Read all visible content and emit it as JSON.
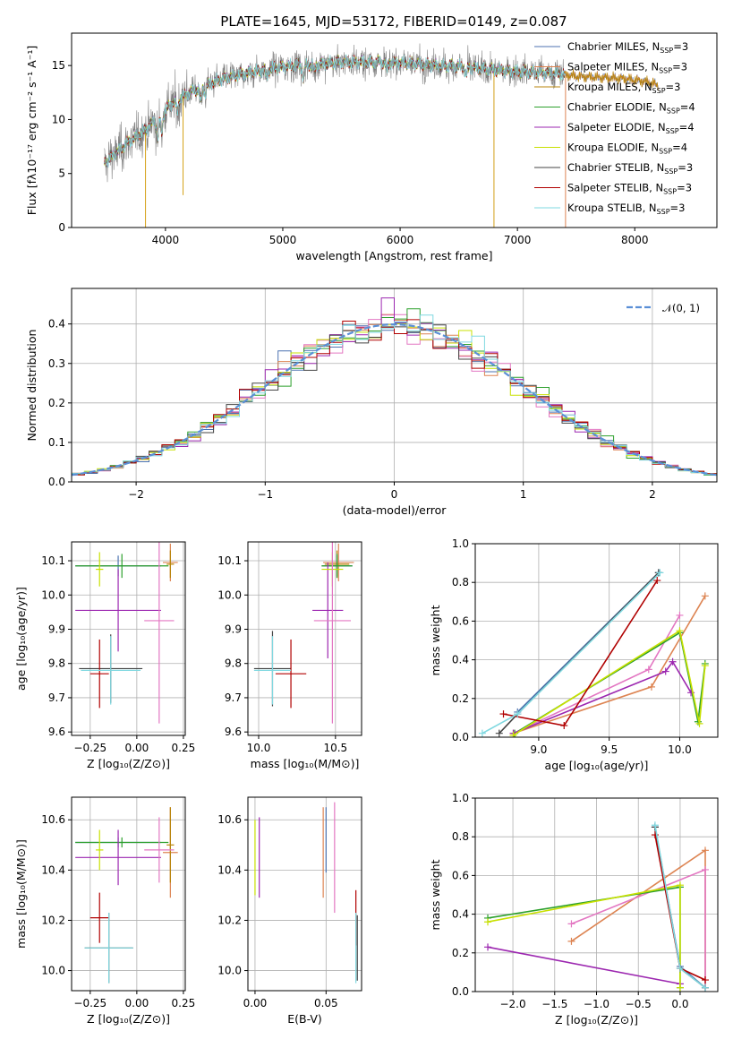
{
  "figure_title": "PLATE=1645, MJD=53172, FIBERID=0149, z=0.087",
  "colors": {
    "chabrier_miles": "#4c72b0",
    "salpeter_miles": "#dd8452",
    "kroupa_miles": "#b8860b",
    "chabrier_elodie": "#2ca02c",
    "salpeter_elodie": "#9c27b0",
    "kroupa_elodie": "#c8e000",
    "chabrier_stelib": "#444444",
    "salpeter_stelib": "#b00000",
    "kroupa_stelib": "#7fd8e0",
    "gauss": "#5a8fd6"
  },
  "chart_data": [
    {
      "id": "spectrum",
      "type": "line",
      "xlabel": "wavelength [Angstrom, rest frame]",
      "ylabel": "Flux [fλ10⁻¹⁷ erg cm⁻² s⁻¹ A⁻¹]",
      "xlim": [
        3200,
        8700
      ],
      "ylim": [
        0,
        18
      ],
      "xticks": [
        "4000",
        "5000",
        "6000",
        "7000",
        "8000"
      ],
      "yticks": [
        "0",
        "5",
        "10",
        "15"
      ],
      "grid": false,
      "legend_position": "top-right",
      "legend": [
        {
          "label": "Chabrier MILES, N_SSP=3",
          "color_key": "chabrier_miles"
        },
        {
          "label": "Salpeter MILES, N_SSP=3",
          "color_key": "salpeter_miles"
        },
        {
          "label": "Kroupa MILES, N_SSP=3",
          "color_key": "kroupa_miles"
        },
        {
          "label": "Chabrier ELODIE, N_SSP=4",
          "color_key": "chabrier_elodie"
        },
        {
          "label": "Salpeter ELODIE, N_SSP=4",
          "color_key": "salpeter_elodie"
        },
        {
          "label": "Kroupa ELODIE, N_SSP=4",
          "color_key": "kroupa_elodie"
        },
        {
          "label": "Chabrier STELIB, N_SSP=3",
          "color_key": "chabrier_stelib"
        },
        {
          "label": "Salpeter STELIB, N_SSP=3",
          "color_key": "salpeter_stelib"
        },
        {
          "label": "Kroupa STELIB, N_SSP=3",
          "color_key": "kroupa_stelib"
        }
      ],
      "continuum": {
        "x": [
          3480,
          3550,
          3650,
          3750,
          3850,
          3950,
          4050,
          4150,
          4300,
          4500,
          4700,
          4900,
          5100,
          5300,
          5500,
          5700,
          5900,
          6100,
          6300,
          6500,
          6700,
          6900,
          7100,
          7300,
          7500,
          7700,
          7900,
          8100,
          8200
        ],
        "y": [
          6.0,
          6.6,
          7.6,
          8.4,
          9.2,
          10.4,
          11.4,
          12.2,
          13.0,
          13.8,
          14.3,
          14.7,
          15.0,
          15.1,
          15.3,
          15.3,
          15.3,
          15.2,
          15.0,
          14.9,
          14.7,
          14.5,
          14.4,
          14.3,
          14.0,
          13.9,
          13.8,
          13.5,
          13.2
        ]
      },
      "data_range": [
        3480,
        7400
      ],
      "model_range": [
        3480,
        8200
      ]
    },
    {
      "id": "residuals",
      "type": "line",
      "xlabel": "(data-model)/error",
      "ylabel": "Normed distribution",
      "xlim": [
        -2.5,
        2.5
      ],
      "ylim": [
        0,
        0.49
      ],
      "xticks": [
        -2,
        -1,
        0,
        1,
        2
      ],
      "xticklabels": [
        "−2",
        "−1",
        "0",
        "1",
        "2"
      ],
      "yticks": [
        0.0,
        0.1,
        0.2,
        0.3,
        0.4
      ],
      "yticklabels": [
        "0.0",
        "0.1",
        "0.2",
        "0.3",
        "0.4"
      ],
      "grid": true,
      "legend_position": "top-right",
      "legend": [
        {
          "label": "𝒩(0, 1)",
          "color_key": "gauss"
        }
      ],
      "bin_width": 0.1,
      "bin_start": -2.5
    },
    {
      "id": "age-vs-Z",
      "type": "scatter",
      "xlabel": "Z [log₁₀(Z/Z⊙)]",
      "ylabel": "age  [log₁₀(age/yr)]",
      "xlim": [
        -0.35,
        0.26
      ],
      "ylim": [
        9.59,
        10.155
      ],
      "xticks": [
        -0.25,
        0.0,
        0.25
      ],
      "xticklabels": [
        "−0.25",
        "0.00",
        "0.25"
      ],
      "yticks": [
        9.6,
        9.7,
        9.8,
        9.9,
        10.0,
        10.1
      ],
      "yticklabels": [
        "9.6",
        "9.7",
        "9.8",
        "9.9",
        "10.0",
        "10.1"
      ],
      "grid": true,
      "points": [
        {
          "s": "chabrier_miles",
          "x": -0.1,
          "xerr": 0.23,
          "y": 10.085,
          "yerr": 0.03
        },
        {
          "s": "salpeter_miles",
          "x": 0.18,
          "xerr": 0.04,
          "y": 10.095,
          "yerr": 0.055
        },
        {
          "s": "kroupa_miles",
          "x": 0.18,
          "xerr": 0.02,
          "y": 10.09,
          "yerr": 0.04
        },
        {
          "s": "chabrier_elodie",
          "x": -0.08,
          "xerr": 0.25,
          "y": 10.085,
          "yerr": 0.035
        },
        {
          "s": "salpeter_elodie",
          "x": -0.1,
          "xerr": 0.23,
          "y": 9.955,
          "yerr": 0.12
        },
        {
          "s": "kroupa_elodie",
          "x": -0.2,
          "xerr": 0.02,
          "y": 10.075,
          "yerr": 0.05
        },
        {
          "s": "chabrier_stelib",
          "x": -0.14,
          "xerr": 0.17,
          "y": 9.785,
          "yerr": 0.1
        },
        {
          "s": "salpeter_stelib",
          "x": -0.2,
          "xerr": 0.05,
          "y": 9.77,
          "yerr": 0.1
        },
        {
          "s": "kroupa_stelib",
          "x": -0.14,
          "xerr": 0.16,
          "y": 9.78,
          "yerr": 0.1
        },
        {
          "s": "salpeter_miles_pink",
          "x": 0.12,
          "xerr": 0.08,
          "y": 9.925,
          "yerr": 0.3
        }
      ]
    },
    {
      "id": "age-vs-mass",
      "type": "scatter",
      "xlabel": "mass [log₁₀(M/M⊙)]",
      "ylabel": "",
      "xlim": [
        9.93,
        10.67
      ],
      "ylim": [
        9.59,
        10.155
      ],
      "xticks": [
        10.0,
        10.5
      ],
      "xticklabels": [
        "10.0",
        "10.5"
      ],
      "yticks": [
        9.6,
        9.7,
        9.8,
        9.9,
        10.0,
        10.1
      ],
      "yticklabels": [
        "9.6",
        "9.7",
        "9.8",
        "9.9",
        "10.0",
        "10.1"
      ],
      "grid": true,
      "points": [
        {
          "s": "chabrier_miles",
          "x": 10.51,
          "xerr": 0.1,
          "y": 10.085,
          "yerr": 0.03
        },
        {
          "s": "salpeter_miles",
          "x": 10.52,
          "xerr": 0.1,
          "y": 10.095,
          "yerr": 0.055
        },
        {
          "s": "kroupa_miles",
          "x": 10.51,
          "xerr": 0.08,
          "y": 10.09,
          "yerr": 0.04
        },
        {
          "s": "chabrier_elodie",
          "x": 10.51,
          "xerr": 0.1,
          "y": 10.085,
          "yerr": 0.035
        },
        {
          "s": "salpeter_elodie",
          "x": 10.45,
          "xerr": 0.1,
          "y": 9.955,
          "yerr": 0.14
        },
        {
          "s": "kroupa_elodie",
          "x": 10.48,
          "xerr": 0.07,
          "y": 10.075,
          "yerr": 0.05
        },
        {
          "s": "chabrier_stelib",
          "x": 10.09,
          "xerr": 0.12,
          "y": 9.785,
          "yerr": 0.11
        },
        {
          "s": "salpeter_stelib",
          "x": 10.21,
          "xerr": 0.1,
          "y": 9.77,
          "yerr": 0.1
        },
        {
          "s": "kroupa_stelib",
          "x": 10.09,
          "xerr": 0.12,
          "y": 9.78,
          "yerr": 0.1
        },
        {
          "s": "salpeter_miles_pink",
          "x": 10.48,
          "xerr": 0.12,
          "y": 9.925,
          "yerr": 0.3
        }
      ]
    },
    {
      "id": "weight-vs-age",
      "type": "line",
      "xlabel": "age  [log₁₀(age/yr)]",
      "ylabel": "mass weight",
      "xlim": [
        8.55,
        10.27
      ],
      "ylim": [
        0,
        1.0
      ],
      "xticks": [
        9.0,
        9.5,
        10.0
      ],
      "xticklabels": [
        "9.0",
        "9.5",
        "10.0"
      ],
      "yticks": [
        0.0,
        0.2,
        0.4,
        0.6,
        0.8,
        1.0
      ],
      "yticklabels": [
        "0.0",
        "0.2",
        "0.4",
        "0.6",
        "0.8",
        "1.0"
      ],
      "grid": true,
      "series": [
        {
          "s": "chabrier_miles",
          "x": [
            8.85,
            9.85
          ],
          "y": [
            0.13,
            0.85
          ]
        },
        {
          "s": "salpeter_miles",
          "x": [
            8.82,
            9.8,
            10.18
          ],
          "y": [
            0.02,
            0.26,
            0.73
          ]
        },
        {
          "s": "salpeter_miles_pink",
          "x": [
            8.82,
            9.78,
            10.0
          ],
          "y": [
            0.02,
            0.35,
            0.63
          ]
        },
        {
          "s": "chabrier_elodie",
          "x": [
            8.83,
            10.0,
            10.13,
            10.18
          ],
          "y": [
            0.02,
            0.54,
            0.08,
            0.38
          ]
        },
        {
          "s": "salpeter_elodie",
          "x": [
            8.82,
            9.9,
            9.95,
            10.08
          ],
          "y": [
            0.02,
            0.34,
            0.39,
            0.23
          ]
        },
        {
          "s": "kroupa_elodie",
          "x": [
            8.82,
            10.0,
            10.14,
            10.18
          ],
          "y": [
            0.01,
            0.55,
            0.07,
            0.37
          ]
        },
        {
          "s": "chabrier_stelib",
          "x": [
            8.72,
            8.85,
            9.85
          ],
          "y": [
            0.02,
            0.12,
            0.85
          ]
        },
        {
          "s": "salpeter_stelib",
          "x": [
            8.75,
            9.18,
            9.84
          ],
          "y": [
            0.12,
            0.06,
            0.81
          ]
        },
        {
          "s": "kroupa_stelib",
          "x": [
            8.6,
            8.85,
            9.86
          ],
          "y": [
            0.02,
            0.12,
            0.85
          ]
        }
      ]
    },
    {
      "id": "mass-vs-Z",
      "type": "scatter",
      "xlabel": "Z [log₁₀(Z/Z⊙)]",
      "ylabel": "mass [log₁₀(M/M⊙)]",
      "xlim": [
        -0.35,
        0.26
      ],
      "ylim": [
        9.92,
        10.69
      ],
      "xticks": [
        -0.25,
        0.0,
        0.25
      ],
      "xticklabels": [
        "−0.25",
        "0.00",
        "0.25"
      ],
      "yticks": [
        10.0,
        10.2,
        10.4,
        10.6
      ],
      "yticklabels": [
        "10.0",
        "10.2",
        "10.4",
        "10.6"
      ],
      "grid": true,
      "points": [
        {
          "s": "chabrier_miles",
          "x": -0.1,
          "xerr": 0.23,
          "y": 10.51,
          "yerr": 0.02
        },
        {
          "s": "salpeter_miles",
          "x": 0.18,
          "xerr": 0.04,
          "y": 10.47,
          "yerr": 0.18
        },
        {
          "s": "kroupa_miles",
          "x": 0.18,
          "xerr": 0.02,
          "y": 10.5,
          "yerr": 0.15
        },
        {
          "s": "chabrier_elodie",
          "x": -0.08,
          "xerr": 0.25,
          "y": 10.51,
          "yerr": 0.02
        },
        {
          "s": "salpeter_elodie",
          "x": -0.1,
          "xerr": 0.23,
          "y": 10.45,
          "yerr": 0.11
        },
        {
          "s": "kroupa_elodie",
          "x": -0.2,
          "xerr": 0.02,
          "y": 10.48,
          "yerr": 0.08
        },
        {
          "s": "chabrier_stelib",
          "x": -0.15,
          "xerr": 0.13,
          "y": 10.09,
          "yerr": 0.14
        },
        {
          "s": "salpeter_stelib",
          "x": -0.2,
          "xerr": 0.05,
          "y": 10.21,
          "yerr": 0.1
        },
        {
          "s": "kroupa_stelib",
          "x": -0.15,
          "xerr": 0.13,
          "y": 10.09,
          "yerr": 0.14
        },
        {
          "s": "salpeter_miles_pink",
          "x": 0.12,
          "xerr": 0.08,
          "y": 10.48,
          "yerr": 0.13
        }
      ]
    },
    {
      "id": "mass-vs-EBV",
      "type": "scatter",
      "xlabel": "E(B-V)",
      "ylabel": "",
      "xlim": [
        -0.005,
        0.075
      ],
      "ylim": [
        9.92,
        10.69
      ],
      "xticks": [
        0.0,
        0.05
      ],
      "xticklabels": [
        "0.00",
        "0.05"
      ],
      "yticks": [
        10.0,
        10.2,
        10.4,
        10.6
      ],
      "yticklabels": [
        "10.0",
        "10.2",
        "10.4",
        "10.6"
      ],
      "grid": true,
      "points": [
        {
          "s": "chabrier_miles",
          "x": 0.05,
          "xerr": 0,
          "y": 10.52,
          "yerr": 0.13
        },
        {
          "s": "salpeter_miles",
          "x": 0.048,
          "xerr": 0,
          "y": 10.47,
          "yerr": 0.18
        },
        {
          "s": "kroupa_elodie",
          "x": 0.0,
          "xerr": 0,
          "y": 10.45,
          "yerr": 0.15
        },
        {
          "s": "salpeter_elodie",
          "x": 0.003,
          "xerr": 0,
          "y": 10.45,
          "yerr": 0.16
        },
        {
          "s": "salpeter_miles_pink",
          "x": 0.056,
          "xerr": 0,
          "y": 10.45,
          "yerr": 0.22
        },
        {
          "s": "salpeter_stelib",
          "x": 0.071,
          "xerr": 0,
          "y": 10.21,
          "yerr": 0.11
        },
        {
          "s": "kroupa_stelib",
          "x": 0.071,
          "xerr": 0,
          "y": 10.09,
          "yerr": 0.14
        },
        {
          "s": "chabrier_stelib",
          "x": 0.072,
          "xerr": 0,
          "y": 10.09,
          "yerr": 0.13
        }
      ]
    },
    {
      "id": "weight-vs-Z",
      "type": "line",
      "xlabel": "Z [log₁₀(Z/Z⊙)]",
      "ylabel": "mass weight",
      "xlim": [
        -2.45,
        0.45
      ],
      "ylim": [
        0,
        1.0
      ],
      "xticks": [
        -2.0,
        -1.5,
        -1.0,
        -0.5,
        0.0
      ],
      "xticklabels": [
        "−2.0",
        "−1.5",
        "−1.0",
        "−0.5",
        "0.0"
      ],
      "yticks": [
        0.0,
        0.2,
        0.4,
        0.6,
        0.8,
        1.0
      ],
      "yticklabels": [
        "0.0",
        "0.2",
        "0.4",
        "0.6",
        "0.8",
        "1.0"
      ],
      "grid": true,
      "series": [
        {
          "s": "chabrier_miles",
          "x": [
            -0.3,
            0.0,
            0.3
          ],
          "y": [
            0.85,
            0.13,
            0.02
          ]
        },
        {
          "s": "salpeter_miles",
          "x": [
            -1.3,
            0.3,
            0.3
          ],
          "y": [
            0.26,
            0.73,
            0.02
          ]
        },
        {
          "s": "salpeter_miles_pink",
          "x": [
            -1.3,
            0.3,
            0.3
          ],
          "y": [
            0.35,
            0.63,
            0.02
          ]
        },
        {
          "s": "chabrier_elodie",
          "x": [
            -2.3,
            0.0,
            0.0
          ],
          "y": [
            0.38,
            0.54,
            0.02
          ]
        },
        {
          "s": "salpeter_elodie",
          "x": [
            -2.3,
            0.0
          ],
          "y": [
            0.23,
            0.04
          ]
        },
        {
          "s": "kroupa_elodie",
          "x": [
            -2.3,
            0.0,
            0.0
          ],
          "y": [
            0.36,
            0.55,
            0.02
          ]
        },
        {
          "s": "chabrier_stelib",
          "x": [
            -0.3,
            0.0,
            0.3
          ],
          "y": [
            0.85,
            0.12,
            0.02
          ]
        },
        {
          "s": "salpeter_stelib",
          "x": [
            -0.3,
            0.0,
            0.3
          ],
          "y": [
            0.81,
            0.12,
            0.06
          ]
        },
        {
          "s": "kroupa_stelib",
          "x": [
            -0.3,
            0.0,
            0.3
          ],
          "y": [
            0.86,
            0.12,
            0.02
          ]
        }
      ]
    }
  ]
}
